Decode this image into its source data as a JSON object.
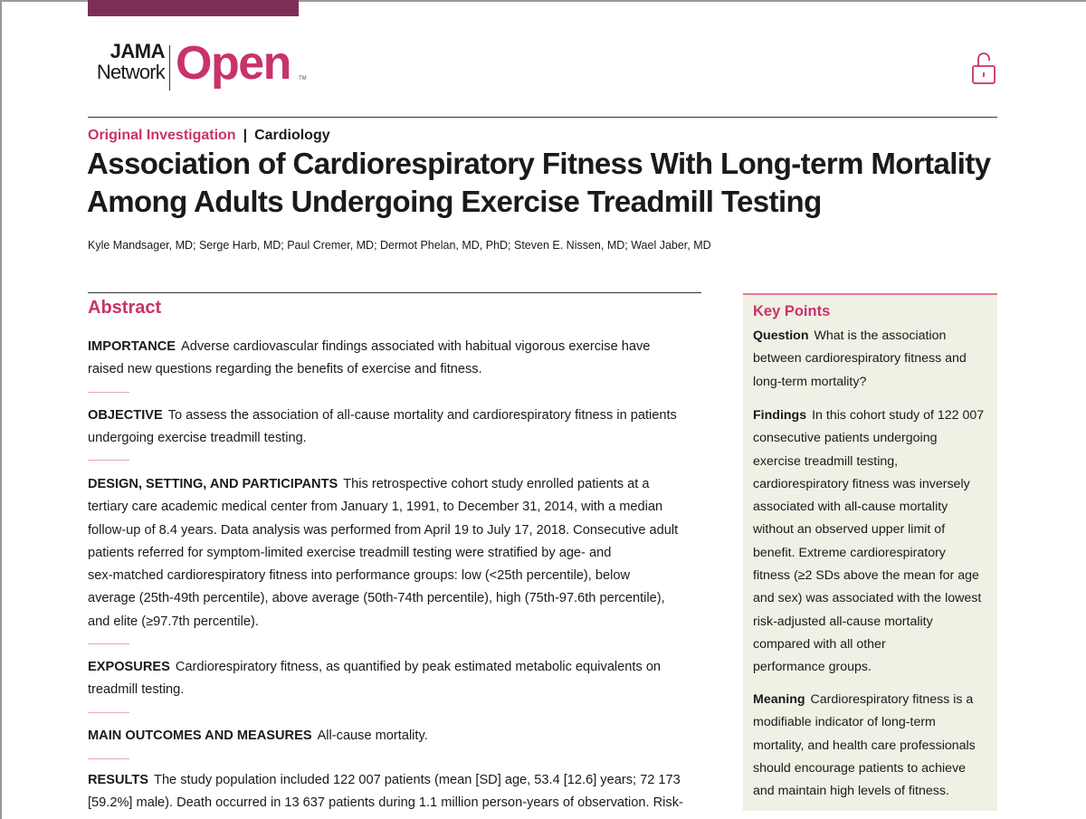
{
  "header": {
    "logo": {
      "line1": "JAMA",
      "line2": "Network",
      "word": "Open",
      "tm": "TM"
    },
    "icons": [
      "unlock-icon"
    ],
    "colors": {
      "brand": "#c8336b",
      "topbar": "#7e2d57",
      "keypoints_bg": "#f1f0e5"
    }
  },
  "article": {
    "type": "Original Investigation",
    "section": "Cardiology",
    "separator": "|",
    "title_lines": [
      "Association of Cardiorespiratory Fitness With Long-term Mortality",
      "Among Adults Undergoing Exercise Treadmill Testing"
    ],
    "authors": "Kyle Mandsager, MD; Serge Harb, MD; Paul Cremer, MD; Dermot Phelan, MD, PhD; Steven E. Nissen, MD; Wael Jaber, MD"
  },
  "abstract": {
    "heading": "Abstract",
    "sections": [
      {
        "head": "IMPORTANCE",
        "lines": [
          "Adverse cardiovascular findings associated with habitual vigorous exercise have",
          "raised new questions regarding the benefits of exercise and fitness."
        ]
      },
      {
        "head": "OBJECTIVE",
        "lines": [
          "To assess the association of all-cause mortality and cardiorespiratory fitness in patients",
          "undergoing exercise treadmill testing."
        ]
      },
      {
        "head": "DESIGN, SETTING, AND PARTICIPANTS",
        "lines": [
          "This retrospective cohort study enrolled patients at a",
          "tertiary care academic medical center from January 1, 1991, to December 31, 2014, with a median",
          "follow-up of 8.4 years. Data analysis was performed from April 19 to July 17, 2018. Consecutive adult",
          "patients referred for symptom-limited exercise treadmill testing were stratified by age- and",
          "sex-matched cardiorespiratory fitness into performance groups: low (<25th percentile), below",
          "average (25th-49th percentile), above average (50th-74th percentile), high (75th-97.6th percentile),",
          "and elite (≥97.7th percentile)."
        ]
      },
      {
        "head": "EXPOSURES",
        "lines": [
          "Cardiorespiratory fitness, as quantified by peak estimated metabolic equivalents on",
          "treadmill testing."
        ]
      },
      {
        "head": "MAIN OUTCOMES AND MEASURES",
        "lines": [
          "All-cause mortality."
        ]
      },
      {
        "head": "RESULTS",
        "lines": [
          "The study population included 122 007 patients (mean [SD] age, 53.4 [12.6] years; 72 173",
          "[59.2%] male). Death occurred in 13 637 patients during 1.1 million person-years of observation. Risk-"
        ]
      }
    ]
  },
  "key_points": {
    "heading": "Key Points",
    "sections": [
      {
        "head": "Question",
        "lines": [
          "What is the association",
          "between cardiorespiratory fitness and",
          "long-term mortality?"
        ]
      },
      {
        "head": "Findings",
        "lines": [
          "In this cohort study of 122 007",
          "consecutive patients undergoing",
          "exercise treadmill testing,",
          "cardiorespiratory fitness was inversely",
          "associated with all-cause mortality",
          "without an observed upper limit of",
          "benefit. Extreme cardiorespiratory",
          "fitness (≥2 SDs above the mean for age",
          "and sex) was associated with the lowest",
          "risk-adjusted all-cause mortality",
          "compared with all other",
          "performance groups."
        ]
      },
      {
        "head": "Meaning",
        "lines": [
          "Cardiorespiratory fitness is a",
          "modifiable indicator of long-term",
          "mortality, and health care professionals",
          "should encourage patients to achieve",
          "and maintain high levels of fitness."
        ]
      }
    ]
  }
}
